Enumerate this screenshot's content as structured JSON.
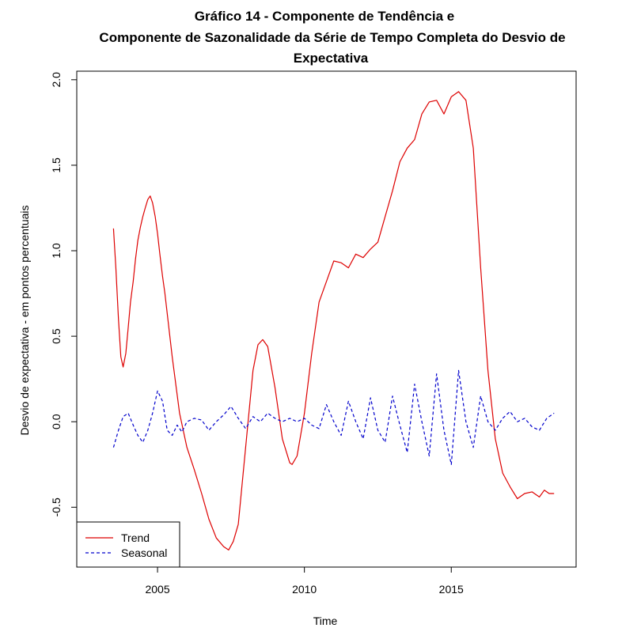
{
  "chart_data": {
    "type": "line",
    "title_lines": [
      "Gráfico 14 - Componente de Tendência e",
      "Componente de Sazonalidade da Série de Tempo Completa do Desvio de",
      "Expectativa"
    ],
    "xlabel": "Time",
    "ylabel": "Desvio de expectativa - em pontos percentuais",
    "xlim": [
      2002.25,
      2019.25
    ],
    "ylim": [
      -0.85,
      2.05
    ],
    "x_ticks": [
      2005,
      2010,
      2015
    ],
    "x_tick_labels": [
      "2005",
      "2010",
      "2015"
    ],
    "y_ticks": [
      -0.5,
      0.0,
      0.5,
      1.0,
      1.5,
      2.0
    ],
    "y_tick_labels": [
      "-0.5",
      "0.0",
      "0.5",
      "1.0",
      "1.5",
      "2.0"
    ],
    "legend": {
      "position": "bottom-left",
      "entries": [
        {
          "label": "Trend",
          "color": "#dd0000",
          "style": "solid"
        },
        {
          "label": "Seasonal",
          "color": "#0000cc",
          "style": "dashed"
        }
      ]
    },
    "series": [
      {
        "name": "Trend",
        "color": "#dd0000",
        "style": "solid",
        "x": [
          2003.5,
          2003.58,
          2003.67,
          2003.75,
          2003.83,
          2003.92,
          2004.0,
          2004.08,
          2004.17,
          2004.25,
          2004.33,
          2004.42,
          2004.5,
          2004.58,
          2004.67,
          2004.75,
          2004.83,
          2004.92,
          2005.0,
          2005.08,
          2005.17,
          2005.25,
          2005.5,
          2005.75,
          2006.0,
          2006.25,
          2006.5,
          2006.75,
          2007.0,
          2007.25,
          2007.42,
          2007.58,
          2007.75,
          2008.0,
          2008.25,
          2008.42,
          2008.58,
          2008.75,
          2009.0,
          2009.25,
          2009.5,
          2009.58,
          2009.75,
          2010.0,
          2010.25,
          2010.5,
          2010.75,
          2011.0,
          2011.25,
          2011.5,
          2011.75,
          2012.0,
          2012.25,
          2012.5,
          2012.75,
          2013.0,
          2013.25,
          2013.5,
          2013.75,
          2014.0,
          2014.25,
          2014.5,
          2014.75,
          2015.0,
          2015.25,
          2015.5,
          2015.75,
          2016.0,
          2016.25,
          2016.5,
          2016.75,
          2017.0,
          2017.25,
          2017.5,
          2017.75,
          2018.0,
          2018.17,
          2018.33,
          2018.5
        ],
        "y": [
          1.13,
          0.9,
          0.6,
          0.38,
          0.32,
          0.4,
          0.55,
          0.7,
          0.82,
          0.95,
          1.06,
          1.14,
          1.2,
          1.25,
          1.3,
          1.32,
          1.28,
          1.2,
          1.1,
          0.98,
          0.85,
          0.75,
          0.38,
          0.05,
          -0.15,
          -0.28,
          -0.42,
          -0.57,
          -0.68,
          -0.73,
          -0.75,
          -0.7,
          -0.6,
          -0.15,
          0.3,
          0.45,
          0.48,
          0.44,
          0.2,
          -0.1,
          -0.24,
          -0.25,
          -0.2,
          0.05,
          0.4,
          0.7,
          0.82,
          0.94,
          0.93,
          0.9,
          0.98,
          0.96,
          1.01,
          1.05,
          1.2,
          1.35,
          1.52,
          1.6,
          1.65,
          1.8,
          1.87,
          1.88,
          1.8,
          1.9,
          1.93,
          1.88,
          1.6,
          0.9,
          0.3,
          -0.1,
          -0.3,
          -0.38,
          -0.45,
          -0.42,
          -0.41,
          -0.44,
          -0.4,
          -0.42,
          -0.42
        ]
      },
      {
        "name": "Seasonal",
        "color": "#0000cc",
        "style": "dashed",
        "x": [
          2003.5,
          2003.67,
          2003.83,
          2004.0,
          2004.17,
          2004.33,
          2004.5,
          2004.67,
          2004.83,
          2005.0,
          2005.17,
          2005.33,
          2005.5,
          2005.67,
          2005.83,
          2006.0,
          2006.25,
          2006.5,
          2006.75,
          2007.0,
          2007.25,
          2007.5,
          2007.75,
          2008.0,
          2008.25,
          2008.5,
          2008.75,
          2009.0,
          2009.25,
          2009.5,
          2009.75,
          2010.0,
          2010.25,
          2010.5,
          2010.75,
          2011.0,
          2011.25,
          2011.5,
          2011.75,
          2012.0,
          2012.25,
          2012.5,
          2012.75,
          2013.0,
          2013.25,
          2013.5,
          2013.75,
          2014.0,
          2014.25,
          2014.5,
          2014.75,
          2015.0,
          2015.25,
          2015.5,
          2015.75,
          2016.0,
          2016.25,
          2016.5,
          2016.75,
          2017.0,
          2017.25,
          2017.5,
          2017.75,
          2018.0,
          2018.25,
          2018.5
        ],
        "y": [
          -0.15,
          -0.05,
          0.03,
          0.05,
          -0.02,
          -0.08,
          -0.12,
          -0.05,
          0.05,
          0.18,
          0.12,
          -0.05,
          -0.08,
          -0.02,
          -0.06,
          0.0,
          0.02,
          0.01,
          -0.05,
          0.0,
          0.04,
          0.09,
          0.02,
          -0.04,
          0.03,
          0.0,
          0.05,
          0.02,
          0.0,
          0.02,
          0.0,
          0.02,
          -0.02,
          -0.04,
          0.1,
          0.0,
          -0.08,
          0.12,
          0.0,
          -0.1,
          0.14,
          -0.05,
          -0.12,
          0.15,
          -0.02,
          -0.18,
          0.22,
          0.0,
          -0.2,
          0.28,
          -0.05,
          -0.25,
          0.3,
          0.0,
          -0.15,
          0.15,
          0.0,
          -0.05,
          0.02,
          0.06,
          0.0,
          0.02,
          -0.03,
          -0.05,
          0.02,
          0.05
        ]
      }
    ]
  }
}
